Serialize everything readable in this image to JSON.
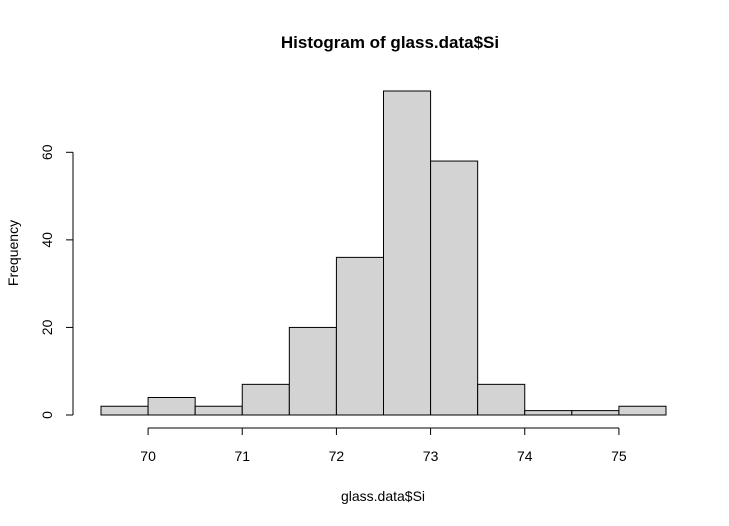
{
  "chart_data": {
    "type": "bar",
    "title": "Histogram of glass.data$Si",
    "xlabel": "glass.data$Si",
    "ylabel": "Frequency",
    "bin_edges": [
      69.5,
      70,
      70.5,
      71,
      71.5,
      72,
      72.5,
      73,
      73.5,
      74,
      74.5,
      75,
      75.5
    ],
    "values": [
      2,
      4,
      2,
      7,
      20,
      36,
      74,
      58,
      7,
      1,
      1,
      2
    ],
    "xlim": [
      69.5,
      75.5
    ],
    "ylim": [
      0,
      74
    ],
    "x_ticks": [
      70,
      71,
      72,
      73,
      74,
      75
    ],
    "y_ticks": [
      0,
      20,
      40,
      60
    ],
    "bar_fill": "#d3d3d3",
    "bar_stroke": "#000000",
    "grid": false,
    "legend": "none"
  }
}
